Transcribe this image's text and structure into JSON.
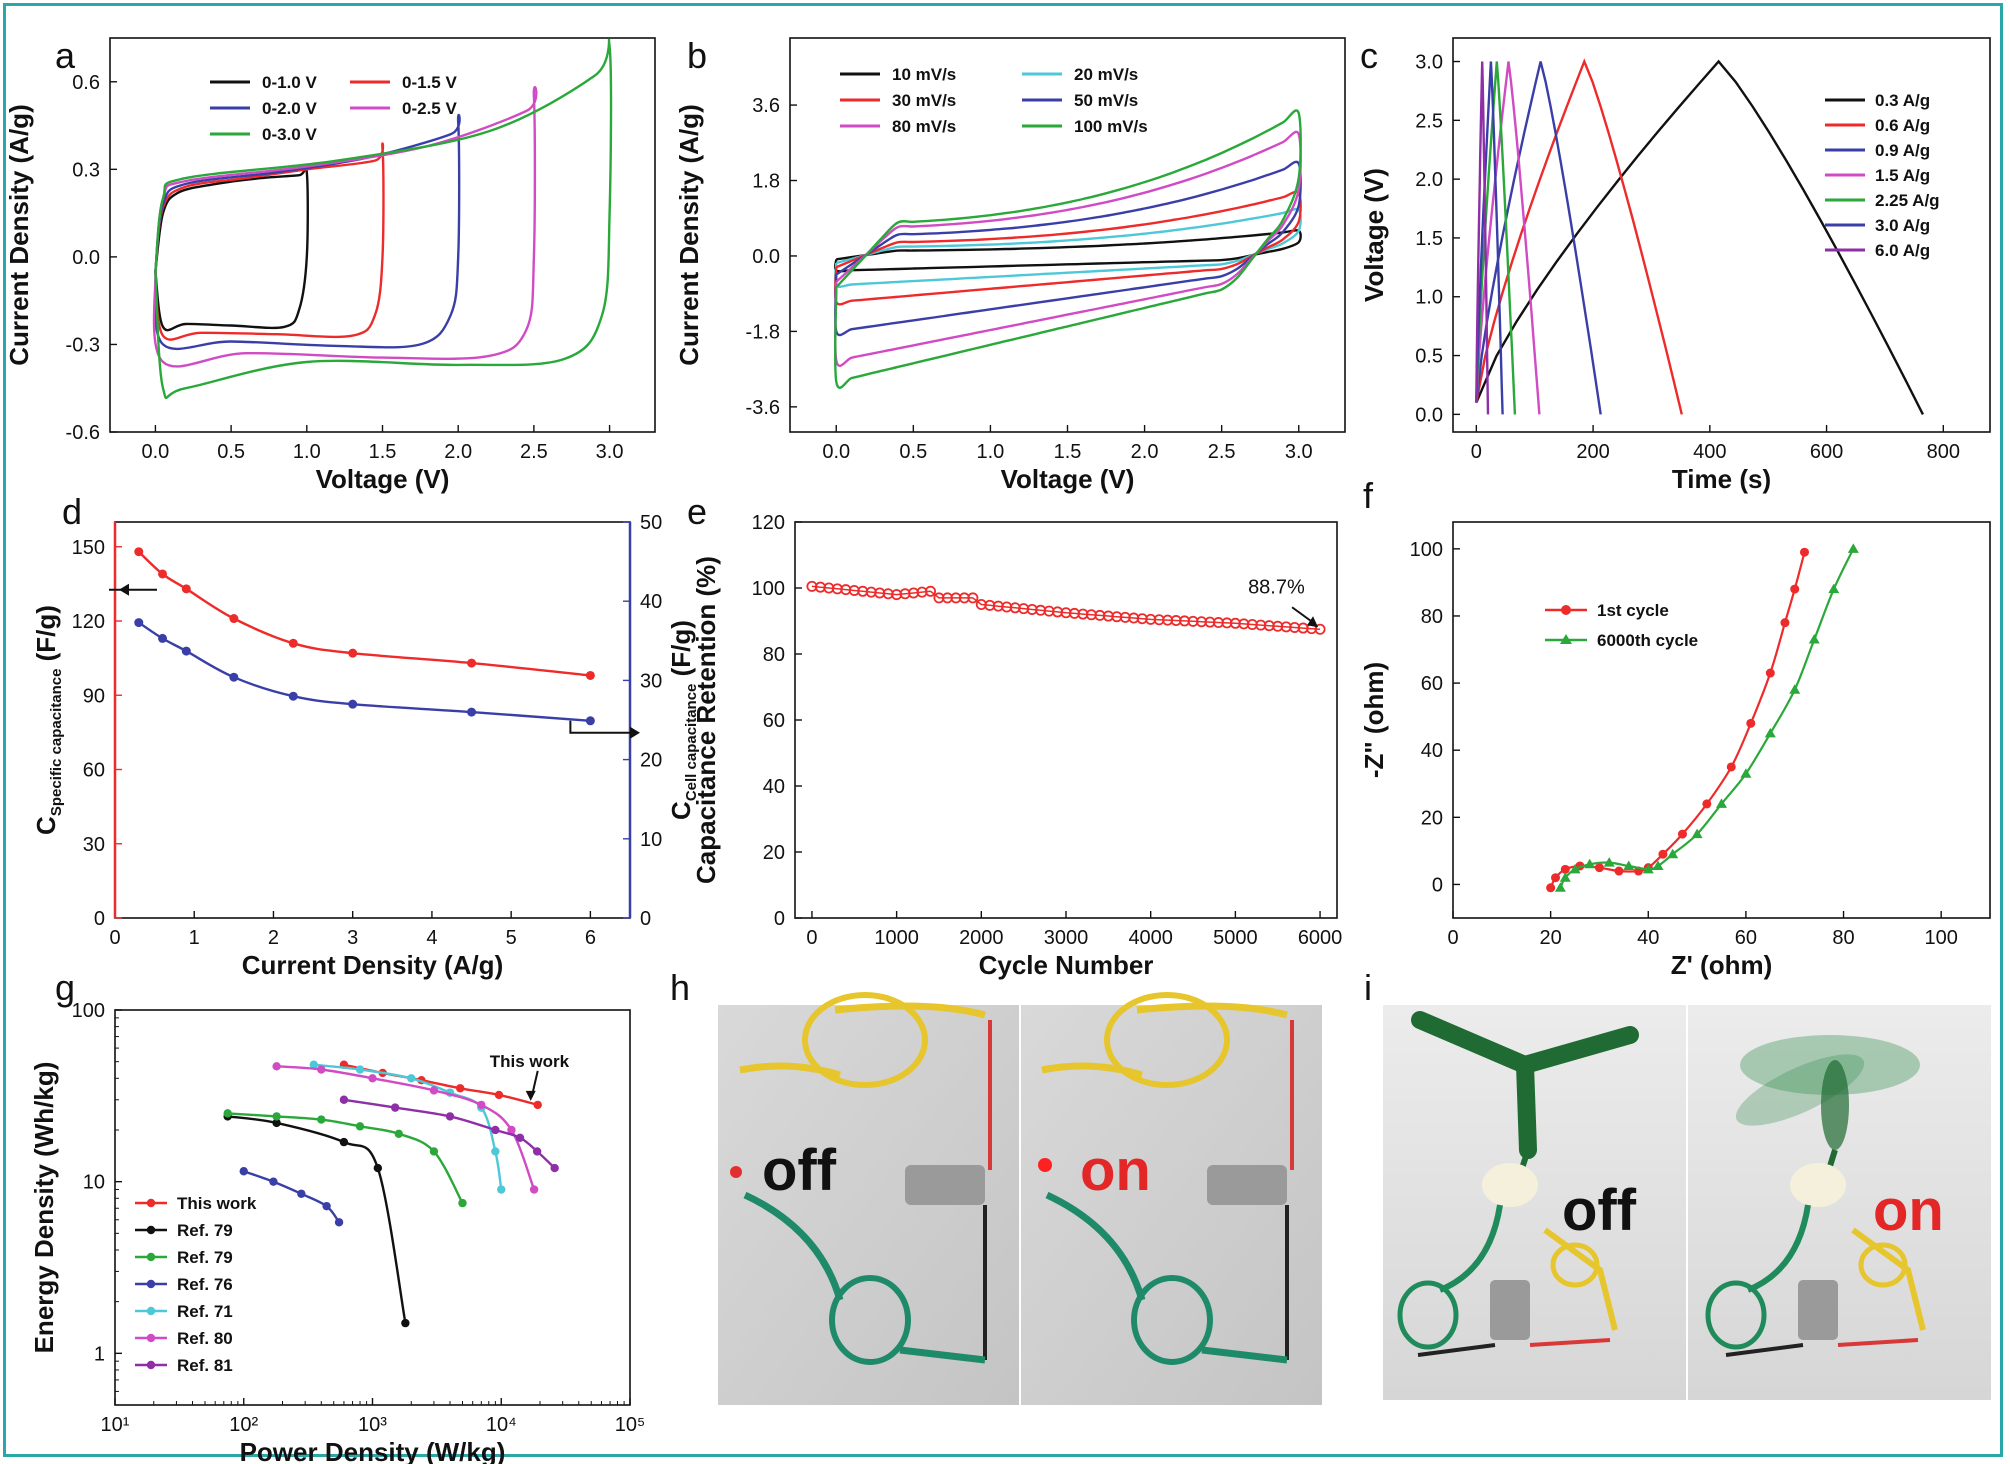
{
  "panel_labels": [
    "a",
    "b",
    "c",
    "d",
    "e",
    "f",
    "g",
    "h",
    "i"
  ],
  "colors": {
    "frame": "#2aa7a8",
    "black": "#111111",
    "red": "#ee2b2b",
    "blue": "#3a3fa8",
    "magenta": "#d04bc4",
    "green": "#2aa83a",
    "cyan": "#4cc8d8",
    "purple": "#8e2fa8",
    "dkgreen": "#1e7a3a"
  },
  "chart_data": [
    {
      "panel": "a",
      "type": "line",
      "xlabel": "Voltage (V)",
      "ylabel": "Current Density (A/g)",
      "xlim": [
        -0.3,
        3.3
      ],
      "ylim": [
        -0.6,
        0.75
      ],
      "xticks": [
        "0.0",
        "0.5",
        "1.0",
        "1.5",
        "2.0",
        "2.5",
        "3.0"
      ],
      "yticks": [
        "-0.6",
        "-0.3",
        "0.0",
        "0.3",
        "0.6"
      ],
      "legend": "top-center",
      "series": [
        {
          "name": "0-1.0 V",
          "color": "black",
          "x": [
            0.0,
            0.05,
            0.15,
            0.4,
            0.7,
            0.95,
            1.0,
            1.0,
            0.95,
            0.85,
            0.5,
            0.2,
            0.05,
            0.0
          ],
          "y": [
            -0.05,
            0.15,
            0.22,
            0.25,
            0.27,
            0.28,
            0.29,
            0.0,
            -0.18,
            -0.24,
            -0.235,
            -0.23,
            -0.24,
            -0.05
          ]
        },
        {
          "name": "0-1.5 V",
          "color": "red",
          "x": [
            0.0,
            0.05,
            0.2,
            0.6,
            1.0,
            1.45,
            1.5,
            1.5,
            1.45,
            1.3,
            0.8,
            0.3,
            0.05,
            0.0
          ],
          "y": [
            -0.05,
            0.17,
            0.24,
            0.27,
            0.3,
            0.33,
            0.37,
            0.0,
            -0.2,
            -0.27,
            -0.265,
            -0.26,
            -0.27,
            -0.05
          ]
        },
        {
          "name": "0-2.0 V",
          "color": "blue",
          "x": [
            0.0,
            0.05,
            0.2,
            0.8,
            1.4,
            1.95,
            2.0,
            2.0,
            1.95,
            1.75,
            1.2,
            0.5,
            0.05,
            0.0
          ],
          "y": [
            -0.05,
            0.18,
            0.25,
            0.29,
            0.34,
            0.42,
            0.46,
            0.0,
            -0.2,
            -0.3,
            -0.305,
            -0.29,
            -0.3,
            -0.05
          ]
        },
        {
          "name": "0-2.5 V",
          "color": "magenta",
          "x": [
            0.0,
            0.05,
            0.2,
            1.0,
            1.8,
            2.45,
            2.5,
            2.5,
            2.45,
            2.2,
            1.5,
            0.6,
            0.05,
            0.0
          ],
          "y": [
            -0.05,
            0.2,
            0.26,
            0.31,
            0.38,
            0.5,
            0.55,
            0.0,
            -0.25,
            -0.34,
            -0.345,
            -0.33,
            -0.36,
            -0.05
          ]
        },
        {
          "name": "0-3.0 V",
          "color": "green",
          "x": [
            0.0,
            0.05,
            0.2,
            1.2,
            2.2,
            2.9,
            3.0,
            3.0,
            2.95,
            2.7,
            2.0,
            1.0,
            0.2,
            0.05,
            0.0
          ],
          "y": [
            -0.05,
            0.2,
            0.27,
            0.33,
            0.43,
            0.62,
            0.72,
            0.15,
            -0.2,
            -0.35,
            -0.37,
            -0.36,
            -0.45,
            -0.45,
            -0.05
          ]
        }
      ]
    },
    {
      "panel": "b",
      "type": "line",
      "xlabel": "Voltage (V)",
      "ylabel": "Current Density (A/g)",
      "xlim": [
        -0.3,
        3.3
      ],
      "ylim": [
        -4.2,
        5.2
      ],
      "xticks": [
        "0.0",
        "0.5",
        "1.0",
        "1.5",
        "2.0",
        "2.5",
        "3.0"
      ],
      "yticks": [
        "-3.6",
        "-1.8",
        "0.0",
        "1.8",
        "3.6"
      ],
      "legend": "top-left",
      "series": [
        {
          "name": "10 mV/s",
          "color": "black",
          "amp": 0.6,
          "low": -0.35,
          "mid_top": 0.35,
          "mid_bot": -0.25
        },
        {
          "name": "20 mV/s",
          "color": "cyan",
          "amp": 1.1,
          "low": -0.7,
          "mid_top": 0.6,
          "mid_bot": -0.5
        },
        {
          "name": "30 mV/s",
          "color": "red",
          "amp": 1.5,
          "low": -1.1,
          "mid_top": 0.9,
          "mid_bot": -0.75
        },
        {
          "name": "50 mV/s",
          "color": "blue",
          "amp": 2.2,
          "low": -1.8,
          "mid_top": 1.4,
          "mid_bot": -1.1
        },
        {
          "name": "80 mV/s",
          "color": "magenta",
          "amp": 2.9,
          "low": -2.5,
          "mid_top": 1.9,
          "mid_bot": -1.5
        },
        {
          "name": "100 mV/s",
          "color": "green",
          "amp": 3.4,
          "low": -3.0,
          "mid_top": 2.2,
          "mid_bot": -1.8
        }
      ]
    },
    {
      "panel": "c",
      "type": "line",
      "xlabel": "Time (s)",
      "ylabel": "Voltage (V)",
      "xlim": [
        -40,
        880
      ],
      "ylim": [
        -0.15,
        3.2
      ],
      "xticks": [
        "0",
        "200",
        "400",
        "600",
        "800"
      ],
      "yticks": [
        "0.0",
        "0.5",
        "1.0",
        "1.5",
        "2.0",
        "2.5",
        "3.0"
      ],
      "legend": "top-right",
      "series": [
        {
          "name": "0.3 A/g",
          "color": "black",
          "peak": 415,
          "end": 765
        },
        {
          "name": "0.6 A/g",
          "color": "red",
          "peak": 185,
          "end": 352
        },
        {
          "name": "0.9 A/g",
          "color": "blue",
          "peak": 110,
          "end": 213
        },
        {
          "name": "1.5 A/g",
          "color": "magenta",
          "peak": 55,
          "end": 108
        },
        {
          "name": "2.25 A/g",
          "color": "green",
          "peak": 35,
          "end": 66
        },
        {
          "name": "3.0 A/g",
          "color": "blue",
          "peak": 25,
          "end": 45
        },
        {
          "name": "6.0 A/g",
          "color": "purple",
          "peak": 10,
          "end": 20
        }
      ]
    },
    {
      "panel": "d",
      "type": "line",
      "xlabel": "Current Density (A/g)",
      "ylabel_left": "C",
      "ylabel_left_sub": "Specific capacitance",
      "ylabel_left_unit": "(F/g)",
      "ylabel_right": "C",
      "ylabel_right_sub": "Cell capacitance",
      "ylabel_right_unit": "(F/g)",
      "xlim": [
        0,
        6.5
      ],
      "ylim_left": [
        0,
        160
      ],
      "ylim_right": [
        0,
        50
      ],
      "xticks": [
        "0",
        "1",
        "2",
        "3",
        "4",
        "5",
        "6"
      ],
      "yticks_left": [
        "0",
        "30",
        "60",
        "90",
        "120",
        "150"
      ],
      "yticks_right": [
        "0",
        "10",
        "20",
        "30",
        "40",
        "50"
      ],
      "series": [
        {
          "name": "specific",
          "axis": "left",
          "color": "red",
          "x": [
            0.3,
            0.6,
            0.9,
            1.5,
            2.25,
            3.0,
            4.5,
            6.0
          ],
          "y": [
            148,
            139,
            133,
            121,
            111,
            107,
            103,
            98
          ]
        },
        {
          "name": "cell",
          "axis": "right",
          "color": "blue",
          "x": [
            0.3,
            0.6,
            0.9,
            1.5,
            2.25,
            3.0,
            4.5,
            6.0
          ],
          "y": [
            37.3,
            35.3,
            33.7,
            30.4,
            28.0,
            27.0,
            26.0,
            24.9
          ]
        }
      ]
    },
    {
      "panel": "e",
      "type": "scatter",
      "xlabel": "Cycle Number",
      "ylabel": "Capacitance Retention (%)",
      "xlim": [
        -200,
        6200
      ],
      "ylim": [
        0,
        120
      ],
      "xticks": [
        "0",
        "1000",
        "2000",
        "3000",
        "4000",
        "5000",
        "6000"
      ],
      "yticks": [
        "0",
        "20",
        "40",
        "60",
        "80",
        "100",
        "120"
      ],
      "annotation": "88.7%",
      "series": [
        {
          "name": "retention",
          "color": "red",
          "x_start": 0,
          "x_end": 6000,
          "step": 100,
          "knots_x": [
            0,
            1000,
            1400,
            1500,
            1900,
            2000,
            3000,
            4000,
            5000,
            6000
          ],
          "knots_y": [
            100.5,
            98,
            99,
            97,
            97,
            95,
            92.5,
            90.5,
            89.3,
            87.5
          ]
        }
      ]
    },
    {
      "panel": "f",
      "type": "line",
      "xlabel": "Z' (ohm)",
      "ylabel": "-Z\" (ohm)",
      "xlim": [
        0,
        110
      ],
      "ylim": [
        -10,
        108
      ],
      "xticks": [
        "0",
        "20",
        "40",
        "60",
        "80",
        "100"
      ],
      "yticks": [
        "0",
        "20",
        "40",
        "60",
        "80",
        "100"
      ],
      "legend": "top-left",
      "series": [
        {
          "name": "1st cycle",
          "color": "red",
          "marker": "circle",
          "x": [
            20,
            21,
            23,
            26,
            30,
            34,
            38,
            40,
            43,
            47,
            52,
            57,
            61,
            65,
            68,
            70,
            72
          ],
          "y": [
            -1,
            2,
            4.5,
            5.5,
            5,
            4,
            4,
            5,
            9,
            15,
            24,
            35,
            48,
            63,
            78,
            88,
            99
          ]
        },
        {
          "name": "6000th cycle",
          "color": "green",
          "marker": "triangle",
          "x": [
            22,
            23,
            25,
            28,
            32,
            36,
            40,
            42,
            45,
            50,
            55,
            60,
            65,
            70,
            74,
            78,
            82
          ],
          "y": [
            -1,
            2,
            4.5,
            6,
            6.5,
            5.5,
            4.5,
            5.5,
            9,
            15,
            24,
            33,
            45,
            58,
            73,
            88,
            100
          ]
        }
      ]
    },
    {
      "panel": "g",
      "type": "line",
      "xlabel": "Power Density (W/kg)",
      "ylabel": "Energy Density (Wh/kg)",
      "xscale": "log",
      "yscale": "log",
      "xlim": [
        10,
        100000
      ],
      "ylim": [
        0.5,
        100
      ],
      "xticks": [
        "10¹",
        "10²",
        "10³",
        "10⁴",
        "10⁵"
      ],
      "yticks": [
        "1",
        "10",
        "100"
      ],
      "annotation": "This work",
      "legend": "bottom-left",
      "series": [
        {
          "name": "This work",
          "color": "red",
          "x": [
            600,
            1200,
            2400,
            4800,
            9600,
            19200
          ],
          "y": [
            48,
            43,
            39,
            35,
            32,
            28
          ]
        },
        {
          "name": "Ref. 79",
          "color": "black",
          "x": [
            75,
            180,
            600,
            1100,
            1800
          ],
          "y": [
            24,
            22,
            17,
            12,
            1.5
          ]
        },
        {
          "name": "Ref. 79",
          "color": "green",
          "x": [
            75,
            180,
            400,
            800,
            1600,
            3000,
            5000
          ],
          "y": [
            25,
            24,
            23,
            21,
            19,
            15,
            7.5
          ]
        },
        {
          "name": "Ref. 76",
          "color": "blue",
          "x": [
            100,
            170,
            280,
            440,
            550
          ],
          "y": [
            11.5,
            10,
            8.5,
            7.2,
            5.8
          ]
        },
        {
          "name": "Ref. 71",
          "color": "cyan",
          "x": [
            350,
            800,
            2000,
            4000,
            7000,
            9000,
            10000
          ],
          "y": [
            48,
            45,
            40,
            33,
            27,
            15,
            9
          ]
        },
        {
          "name": "Ref. 80",
          "color": "magenta",
          "x": [
            180,
            400,
            1000,
            3000,
            7000,
            12000,
            18000
          ],
          "y": [
            47,
            45,
            40,
            34,
            28,
            20,
            9
          ]
        },
        {
          "name": "Ref. 81",
          "color": "purple",
          "x": [
            600,
            1500,
            4000,
            9000,
            14000,
            19000,
            26000
          ],
          "y": [
            30,
            27,
            24,
            20,
            18,
            15,
            12
          ]
        }
      ]
    }
  ],
  "photos": {
    "h_off": "off",
    "h_on": "on",
    "i_off": "off",
    "i_on": "on"
  }
}
